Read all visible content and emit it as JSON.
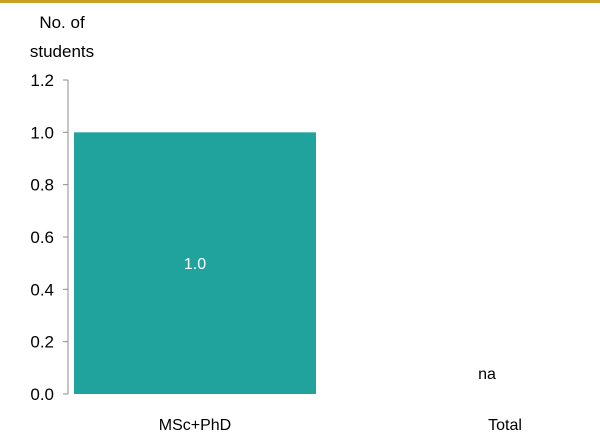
{
  "chart_data": {
    "type": "bar",
    "title": "",
    "xlabel": "",
    "ylabel": [
      "No. of",
      "students"
    ],
    "categories": [
      "MSc+PhD",
      "Total"
    ],
    "values": [
      1.0,
      null
    ],
    "data_labels": [
      "1.0",
      "na"
    ],
    "y_ticks": [
      "0.0",
      "0.2",
      "0.4",
      "0.6",
      "0.8",
      "1.0",
      "1.2"
    ],
    "ylim": [
      0,
      1.2
    ],
    "grid": false,
    "colors": {
      "bar": "#20a39d",
      "data_label_inside": "#ffffff",
      "data_label_outside": "#000000",
      "top_rule": "#c9a227"
    }
  }
}
